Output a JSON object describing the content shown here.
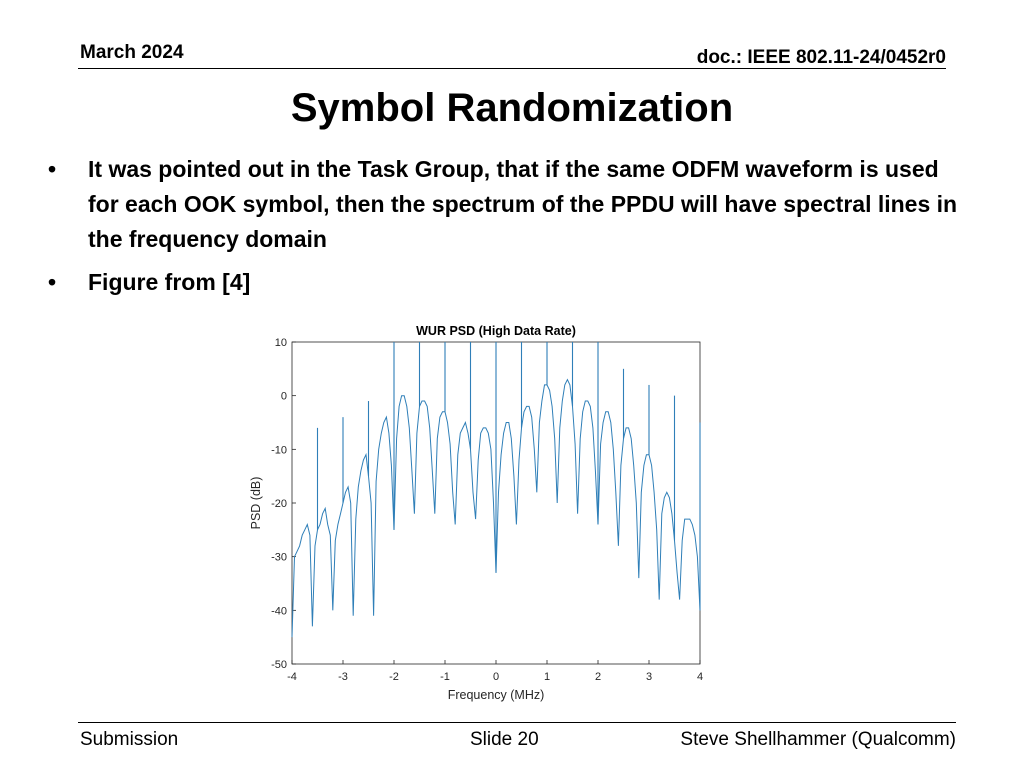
{
  "header": {
    "date": "March 2024",
    "doc": "doc.: IEEE 802.11-24/0452r0"
  },
  "slide": {
    "title": "Symbol Randomization",
    "bullets": [
      "It was pointed out in the Task Group, that if the same ODFM waveform is used for each OOK symbol, then the spectrum of the PPDU will have spectral lines in the frequency domain",
      "Figure from [4]"
    ],
    "bullet_glyph": "•"
  },
  "footer": {
    "left": "Submission",
    "center": "Slide 20",
    "right": "Steve Shellhammer (Qualcomm)"
  },
  "chart_data": {
    "type": "line",
    "title": "WUR PSD (High Data Rate)",
    "xlabel": "Frequency (MHz)",
    "ylabel": "PSD (dB)",
    "xlim": [
      -4,
      4
    ],
    "ylim": [
      -50,
      10
    ],
    "xticks": [
      -4,
      -3,
      -2,
      -1,
      0,
      1,
      2,
      3,
      4
    ],
    "yticks": [
      10,
      0,
      -10,
      -20,
      -30,
      -40,
      -50
    ],
    "grid": false,
    "line_color": "#2f7fb8",
    "series": [
      {
        "x": [
          -4.0,
          -3.95,
          -3.9,
          -3.85,
          -3.8,
          -3.75,
          -3.7,
          -3.65,
          -3.6,
          -3.55,
          -3.5,
          -3.45,
          -3.4,
          -3.35,
          -3.3,
          -3.25,
          -3.2,
          -3.15,
          -3.1,
          -3.05,
          -3.0,
          -2.95,
          -2.9,
          -2.85,
          -2.8,
          -2.75,
          -2.7,
          -2.65,
          -2.6,
          -2.55,
          -2.5,
          -2.45,
          -2.4,
          -2.35,
          -2.3,
          -2.25,
          -2.2,
          -2.15,
          -2.1,
          -2.05,
          -2.0,
          -1.95,
          -1.9,
          -1.85,
          -1.8,
          -1.75,
          -1.7,
          -1.65,
          -1.6,
          -1.55,
          -1.5,
          -1.45,
          -1.4,
          -1.35,
          -1.3,
          -1.25,
          -1.2,
          -1.15,
          -1.1,
          -1.05,
          -1.0,
          -0.95,
          -0.9,
          -0.85,
          -0.8,
          -0.75,
          -0.7,
          -0.65,
          -0.6,
          -0.55,
          -0.5,
          -0.45,
          -0.4,
          -0.35,
          -0.3,
          -0.25,
          -0.2,
          -0.15,
          -0.1,
          -0.05,
          0.0,
          0.05,
          0.1,
          0.15,
          0.2,
          0.25,
          0.3,
          0.35,
          0.4,
          0.45,
          0.5,
          0.55,
          0.6,
          0.65,
          0.7,
          0.75,
          0.8,
          0.85,
          0.9,
          0.95,
          1.0,
          1.05,
          1.1,
          1.15,
          1.2,
          1.25,
          1.3,
          1.35,
          1.4,
          1.45,
          1.5,
          1.55,
          1.6,
          1.65,
          1.7,
          1.75,
          1.8,
          1.85,
          1.9,
          1.95,
          2.0,
          2.05,
          2.1,
          2.15,
          2.2,
          2.25,
          2.3,
          2.35,
          2.4,
          2.45,
          2.5,
          2.55,
          2.6,
          2.65,
          2.7,
          2.75,
          2.8,
          2.85,
          2.9,
          2.95,
          3.0,
          3.05,
          3.1,
          3.15,
          3.2,
          3.25,
          3.3,
          3.35,
          3.4,
          3.45,
          3.5,
          3.55,
          3.6,
          3.65,
          3.7,
          3.75,
          3.8,
          3.85,
          3.9,
          3.95,
          4.0
        ],
        "y": [
          -45,
          -30,
          -29,
          -28,
          -26,
          -25,
          -24,
          -26,
          -43,
          -28,
          -25,
          -24,
          -22,
          -21,
          -24,
          -26,
          -40,
          -27,
          -24,
          -22,
          -20,
          -18,
          -17,
          -20,
          -41,
          -23,
          -17,
          -14,
          -12,
          -11,
          -15,
          -20,
          -41,
          -16,
          -10,
          -7,
          -5,
          -4,
          -7,
          -13,
          -25,
          -8,
          -2,
          0,
          0,
          -2,
          -6,
          -14,
          -22,
          -7,
          -2,
          -1,
          -1,
          -2,
          -6,
          -14,
          -22,
          -8,
          -4,
          -3,
          -3,
          -5,
          -9,
          -18,
          -24,
          -11,
          -7,
          -6,
          -5,
          -7,
          -10,
          -18,
          -23,
          -12,
          -7,
          -6,
          -6,
          -7,
          -10,
          -20,
          -33,
          -18,
          -11,
          -7,
          -5,
          -5,
          -8,
          -15,
          -24,
          -12,
          -6,
          -3,
          -2,
          -2,
          -4,
          -10,
          -18,
          -5,
          -1,
          2,
          2,
          1,
          -2,
          -8,
          -20,
          -6,
          -1,
          2,
          3,
          2,
          -2,
          -9,
          -22,
          -8,
          -3,
          -1,
          -1,
          -2,
          -6,
          -14,
          -24,
          -9,
          -5,
          -3,
          -3,
          -5,
          -10,
          -18,
          -28,
          -13,
          -8,
          -6,
          -6,
          -8,
          -13,
          -20,
          -34,
          -18,
          -13,
          -11,
          -11,
          -13,
          -18,
          -25,
          -38,
          -22,
          -19,
          -18,
          -19,
          -22,
          -27,
          -33,
          -38,
          -27,
          -23,
          -23,
          -23,
          -24,
          -26,
          -30,
          -40
        ]
      }
    ],
    "spectral_lines": [
      {
        "x": -3.5,
        "y": -6
      },
      {
        "x": -3.0,
        "y": -4
      },
      {
        "x": -2.5,
        "y": -1
      },
      {
        "x": -2.0,
        "y": 10
      },
      {
        "x": -1.5,
        "y": 10
      },
      {
        "x": -1.0,
        "y": 10
      },
      {
        "x": -0.5,
        "y": 10
      },
      {
        "x": 0.0,
        "y": 10
      },
      {
        "x": 0.5,
        "y": 10
      },
      {
        "x": 1.0,
        "y": 10
      },
      {
        "x": 1.5,
        "y": 10
      },
      {
        "x": 2.0,
        "y": 10
      },
      {
        "x": 2.5,
        "y": 5
      },
      {
        "x": 3.0,
        "y": 2
      },
      {
        "x": 3.5,
        "y": 0
      },
      {
        "x": 4.0,
        "y": -5
      }
    ]
  }
}
